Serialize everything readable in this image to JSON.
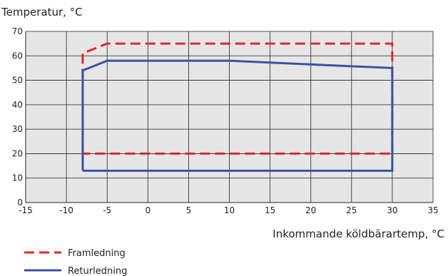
{
  "chart_data": {
    "type": "line",
    "title": "",
    "ylabel": "Temperatur, °C",
    "xlabel": "Inkommande köldbärartemp, °C",
    "xlim": [
      -15,
      35
    ],
    "ylim": [
      0,
      70
    ],
    "x_ticks": [
      "-15",
      "-10",
      "-5",
      "0",
      "5",
      "10",
      "15",
      "20",
      "25",
      "30",
      "35"
    ],
    "y_ticks": [
      "0",
      "10",
      "20",
      "30",
      "40",
      "50",
      "60",
      "70"
    ],
    "grid": true,
    "legend_position": "bottom-left",
    "series": [
      {
        "name": "Framledning",
        "style": "dashed",
        "color": "#e3262b",
        "points": [
          [
            -8,
            20
          ],
          [
            -8,
            61
          ],
          [
            -5,
            65
          ],
          [
            30,
            65
          ],
          [
            30,
            20
          ],
          [
            -8,
            20
          ]
        ]
      },
      {
        "name": "Returledning",
        "style": "solid",
        "color": "#3a52a4",
        "points": [
          [
            -8,
            13
          ],
          [
            -8,
            54
          ],
          [
            -5,
            58
          ],
          [
            10,
            58
          ],
          [
            30,
            55
          ],
          [
            30,
            13
          ],
          [
            -8,
            13
          ]
        ]
      }
    ]
  }
}
